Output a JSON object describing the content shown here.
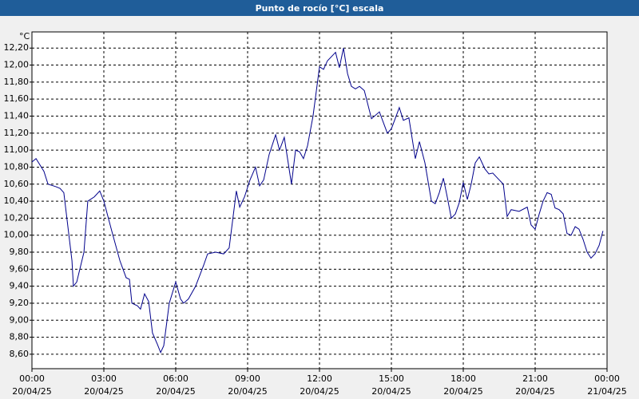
{
  "chart_data": {
    "type": "line",
    "title": "Punto de rocío [°C] escala",
    "y_unit": "°C",
    "color": "#00008b",
    "grid": true,
    "xlim": [
      0,
      24
    ],
    "ylim": [
      8.43,
      12.39
    ],
    "xticks": [
      {
        "value": 0,
        "label": "00:00",
        "date": "20/04/25"
      },
      {
        "value": 3,
        "label": "03:00",
        "date": "20/04/25"
      },
      {
        "value": 6,
        "label": "06:00",
        "date": "20/04/25"
      },
      {
        "value": 9,
        "label": "09:00",
        "date": "20/04/25"
      },
      {
        "value": 12,
        "label": "12:00",
        "date": "20/04/25"
      },
      {
        "value": 15,
        "label": "15:00",
        "date": "20/04/25"
      },
      {
        "value": 18,
        "label": "18:00",
        "date": "20/04/25"
      },
      {
        "value": 21,
        "label": "21:00",
        "date": "20/04/25"
      },
      {
        "value": 24,
        "label": "00:00",
        "date": "21/04/25"
      }
    ],
    "yticks": [
      {
        "value": 8.6,
        "label": "8,60"
      },
      {
        "value": 8.8,
        "label": "8,80"
      },
      {
        "value": 9.0,
        "label": "9,00"
      },
      {
        "value": 9.2,
        "label": "9,20"
      },
      {
        "value": 9.4,
        "label": "9,40"
      },
      {
        "value": 9.6,
        "label": "9,60"
      },
      {
        "value": 9.8,
        "label": "9,80"
      },
      {
        "value": 10.0,
        "label": "10,00"
      },
      {
        "value": 10.2,
        "label": "10,20"
      },
      {
        "value": 10.4,
        "label": "10,40"
      },
      {
        "value": 10.6,
        "label": "10,60"
      },
      {
        "value": 10.8,
        "label": "10,80"
      },
      {
        "value": 11.0,
        "label": "11,00"
      },
      {
        "value": 11.2,
        "label": "11,20"
      },
      {
        "value": 11.4,
        "label": "11,40"
      },
      {
        "value": 11.6,
        "label": "11,60"
      },
      {
        "value": 11.8,
        "label": "11,80"
      },
      {
        "value": 12.0,
        "label": "12,00"
      },
      {
        "value": 12.2,
        "label": "12,20"
      }
    ],
    "x": [
      0,
      0.17,
      0.5,
      0.67,
      1,
      1.17,
      1.33,
      1.67,
      1.73,
      1.87,
      2.17,
      2.33,
      2.6,
      2.83,
      3,
      3.33,
      3.67,
      3.93,
      4.07,
      4.17,
      4.4,
      4.53,
      4.7,
      4.87,
      5.03,
      5.23,
      5.37,
      5.5,
      5.73,
      6,
      6.2,
      6.33,
      6.53,
      6.83,
      7.17,
      7.33,
      7.67,
      8,
      8.23,
      8.53,
      8.67,
      8.87,
      9.1,
      9.33,
      9.5,
      9.67,
      9.9,
      10.17,
      10.33,
      10.53,
      10.83,
      11,
      11.17,
      11.33,
      11.5,
      11.73,
      12,
      12.17,
      12.33,
      12.67,
      12.83,
      13,
      13.17,
      13.33,
      13.5,
      13.67,
      13.87,
      14.17,
      14.5,
      14.83,
      15,
      15.33,
      15.5,
      15.73,
      16,
      16.17,
      16.4,
      16.67,
      16.83,
      17,
      17.17,
      17.33,
      17.5,
      17.67,
      17.83,
      18,
      18.17,
      18.33,
      18.5,
      18.67,
      18.9,
      19.07,
      19.23,
      19.5,
      19.67,
      19.83,
      20,
      20.33,
      20.67,
      20.83,
      21,
      21.17,
      21.33,
      21.5,
      21.67,
      21.83,
      22,
      22.17,
      22.33,
      22.5,
      22.67,
      22.83,
      23,
      23.17,
      23.33,
      23.5,
      23.67,
      23.83
    ],
    "values": [
      10.86,
      10.9,
      10.75,
      10.6,
      10.57,
      10.55,
      10.5,
      9.7,
      9.4,
      9.45,
      9.8,
      10.4,
      10.45,
      10.52,
      10.4,
      10.05,
      9.7,
      9.5,
      9.48,
      9.2,
      9.17,
      9.13,
      9.31,
      9.22,
      8.85,
      8.72,
      8.62,
      8.7,
      9.2,
      9.45,
      9.25,
      9.2,
      9.25,
      9.4,
      9.65,
      9.78,
      9.8,
      9.78,
      9.85,
      10.52,
      10.33,
      10.45,
      10.65,
      10.8,
      10.58,
      10.65,
      10.95,
      11.18,
      11.0,
      11.15,
      10.6,
      11.0,
      10.98,
      10.9,
      11.05,
      11.4,
      11.98,
      11.95,
      12.05,
      12.15,
      11.97,
      12.2,
      11.9,
      11.75,
      11.72,
      11.75,
      11.7,
      11.37,
      11.45,
      11.2,
      11.25,
      11.5,
      11.35,
      11.38,
      10.9,
      11.1,
      10.85,
      10.4,
      10.37,
      10.5,
      10.67,
      10.45,
      10.2,
      10.25,
      10.38,
      10.62,
      10.42,
      10.6,
      10.85,
      10.92,
      10.78,
      10.72,
      10.73,
      10.65,
      10.6,
      10.22,
      10.3,
      10.28,
      10.33,
      10.12,
      10.07,
      10.25,
      10.4,
      10.5,
      10.48,
      10.32,
      10.3,
      10.25,
      10.02,
      10.0,
      10.1,
      10.07,
      9.95,
      9.8,
      9.73,
      9.78,
      9.88,
      10.05
    ]
  }
}
